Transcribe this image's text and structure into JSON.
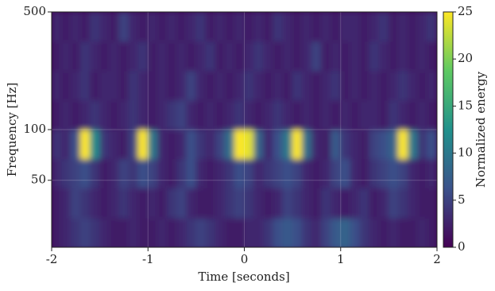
{
  "chart_data": {
    "type": "heatmap",
    "xlabel": "Time [seconds]",
    "ylabel": "Frequency [Hz]",
    "colorbar_label": "Normalized energy",
    "xlim": [
      -2,
      2
    ],
    "xticks": [
      -2,
      -1,
      0,
      1,
      2
    ],
    "ylim": [
      20,
      500
    ],
    "yticks": [
      50,
      100,
      500
    ],
    "yscale": "log",
    "grid": true,
    "zlim": [
      0,
      25
    ],
    "zticks": [
      0,
      5,
      10,
      15,
      20,
      25
    ],
    "colormap": "viridis",
    "x": [
      -1.95,
      -1.85,
      -1.75,
      -1.65,
      -1.55,
      -1.45,
      -1.35,
      -1.25,
      -1.15,
      -1.05,
      -0.95,
      -0.85,
      -0.75,
      -0.65,
      -0.55,
      -0.45,
      -0.35,
      -0.25,
      -0.15,
      -0.05,
      0.05,
      0.15,
      0.25,
      0.35,
      0.45,
      0.55,
      0.65,
      0.75,
      0.85,
      0.95,
      1.05,
      1.15,
      1.25,
      1.35,
      1.45,
      1.55,
      1.65,
      1.75,
      1.85,
      1.95
    ],
    "y": [
      24,
      37,
      55,
      82,
      122,
      183,
      273,
      409
    ],
    "z": [
      [
        2,
        3,
        4,
        5,
        4,
        3,
        2,
        2,
        3,
        2,
        2,
        3,
        2,
        3,
        4,
        5,
        4,
        3,
        2,
        2,
        3,
        3,
        4,
        6,
        7,
        6,
        4,
        3,
        5,
        7,
        8,
        6,
        4,
        3,
        2,
        3,
        2,
        2,
        3,
        2
      ],
      [
        2,
        3,
        5,
        4,
        3,
        2,
        3,
        4,
        3,
        2,
        3,
        2,
        4,
        5,
        3,
        2,
        2,
        3,
        4,
        5,
        4,
        3,
        2,
        3,
        5,
        4,
        3,
        2,
        4,
        3,
        2,
        3,
        4,
        2,
        3,
        5,
        4,
        3,
        2,
        2
      ],
      [
        3,
        4,
        5,
        6,
        4,
        2,
        3,
        5,
        4,
        6,
        5,
        3,
        2,
        4,
        6,
        3,
        2,
        3,
        4,
        6,
        5,
        3,
        4,
        5,
        6,
        5,
        3,
        2,
        3,
        5,
        6,
        3,
        2,
        4,
        5,
        6,
        5,
        3,
        2,
        3
      ],
      [
        4,
        3,
        6,
        25,
        12,
        4,
        3,
        2,
        5,
        25,
        10,
        3,
        2,
        3,
        6,
        4,
        3,
        5,
        9,
        25,
        24,
        8,
        3,
        6,
        10,
        25,
        9,
        3,
        2,
        7,
        4,
        3,
        2,
        5,
        6,
        8,
        25,
        10,
        4,
        6
      ],
      [
        2,
        3,
        2,
        3,
        4,
        3,
        2,
        3,
        4,
        3,
        2,
        3,
        4,
        5,
        3,
        2,
        3,
        2,
        3,
        4,
        3,
        2,
        3,
        4,
        3,
        2,
        3,
        2,
        3,
        2,
        3,
        2,
        3,
        3,
        2,
        4,
        3,
        2,
        3,
        2
      ],
      [
        3,
        2,
        3,
        4,
        2,
        3,
        3,
        2,
        4,
        3,
        2,
        3,
        2,
        3,
        5,
        3,
        2,
        3,
        2,
        3,
        4,
        3,
        2,
        3,
        2,
        4,
        3,
        2,
        3,
        4,
        2,
        3,
        2,
        3,
        2,
        3,
        4,
        3,
        2,
        3
      ],
      [
        2,
        3,
        2,
        4,
        3,
        2,
        3,
        2,
        3,
        4,
        2,
        3,
        2,
        3,
        2,
        3,
        4,
        2,
        3,
        2,
        3,
        4,
        3,
        2,
        3,
        2,
        3,
        5,
        2,
        3,
        2,
        3,
        2,
        4,
        3,
        2,
        3,
        2,
        3,
        2
      ],
      [
        3,
        2,
        3,
        2,
        4,
        3,
        2,
        5,
        3,
        2,
        3,
        2,
        3,
        2,
        3,
        4,
        2,
        3,
        2,
        3,
        2,
        3,
        2,
        4,
        3,
        2,
        3,
        2,
        3,
        2,
        3,
        3,
        2,
        3,
        4,
        2,
        3,
        2,
        3,
        4
      ]
    ]
  }
}
